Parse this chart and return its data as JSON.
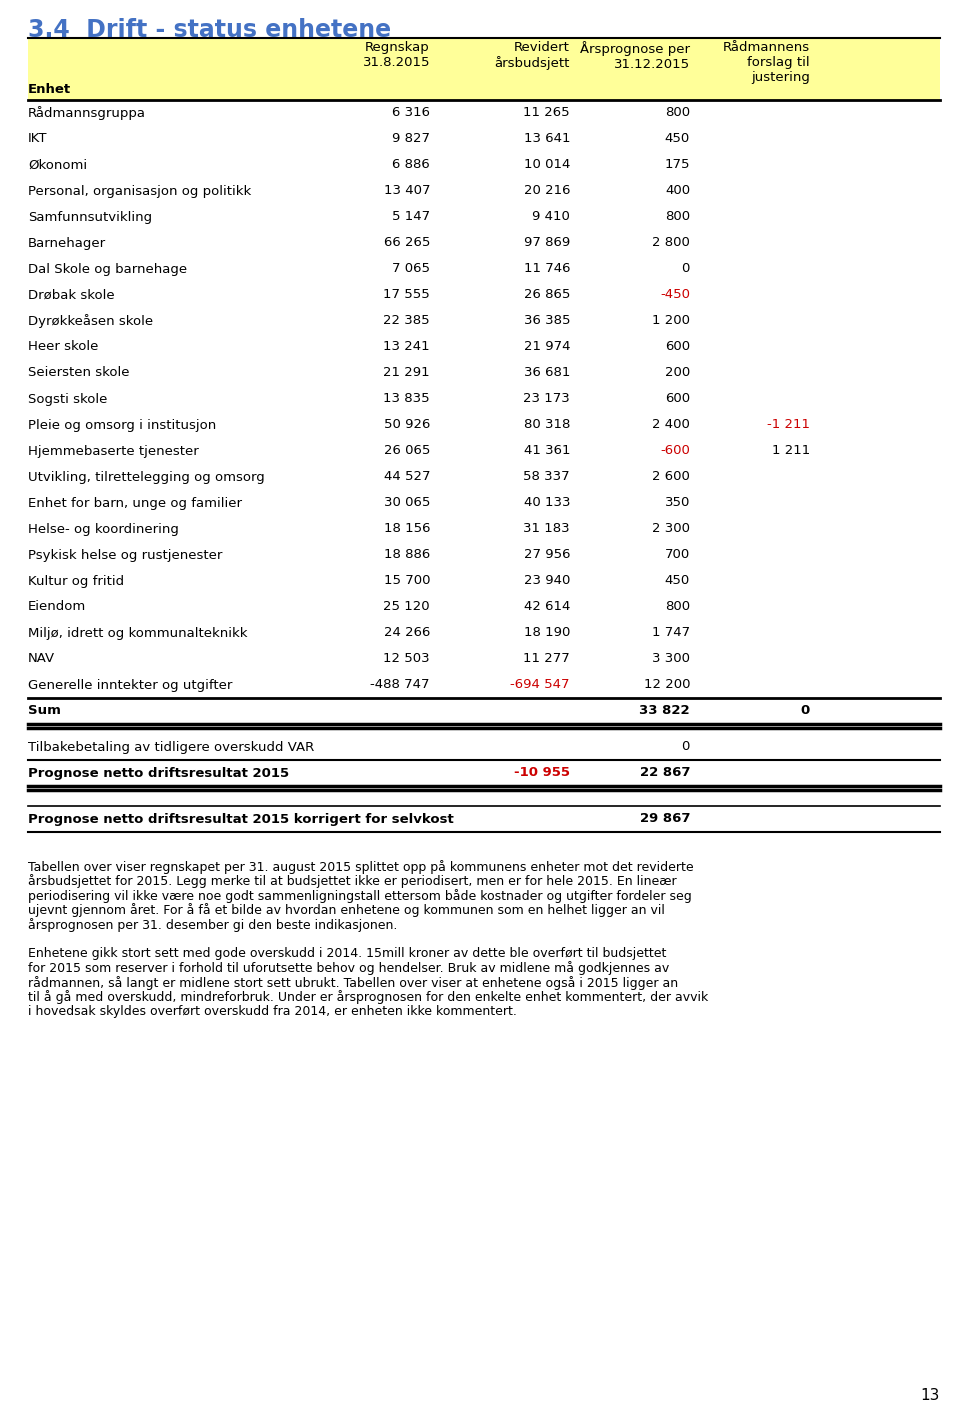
{
  "title": "3.4  Drift - status enhetene",
  "title_color": "#4472C4",
  "header_bg": "#FFFF99",
  "rows": [
    {
      "name": "Rådmannsgruppa",
      "regnskap": "6 316",
      "revidert": "11 265",
      "arsprognose": "800",
      "radmann": "",
      "arsprognose_red": false,
      "revidert_red": false,
      "radmann_red": false
    },
    {
      "name": "IKT",
      "regnskap": "9 827",
      "revidert": "13 641",
      "arsprognose": "450",
      "radmann": "",
      "arsprognose_red": false,
      "revidert_red": false,
      "radmann_red": false
    },
    {
      "name": "Økonomi",
      "regnskap": "6 886",
      "revidert": "10 014",
      "arsprognose": "175",
      "radmann": "",
      "arsprognose_red": false,
      "revidert_red": false,
      "radmann_red": false
    },
    {
      "name": "Personal, organisasjon og politikk",
      "regnskap": "13 407",
      "revidert": "20 216",
      "arsprognose": "400",
      "radmann": "",
      "arsprognose_red": false,
      "revidert_red": false,
      "radmann_red": false
    },
    {
      "name": "Samfunnsutvikling",
      "regnskap": "5 147",
      "revidert": "9 410",
      "arsprognose": "800",
      "radmann": "",
      "arsprognose_red": false,
      "revidert_red": false,
      "radmann_red": false
    },
    {
      "name": "Barnehager",
      "regnskap": "66 265",
      "revidert": "97 869",
      "arsprognose": "2 800",
      "radmann": "",
      "arsprognose_red": false,
      "revidert_red": false,
      "radmann_red": false
    },
    {
      "name": "Dal Skole og barnehage",
      "regnskap": "7 065",
      "revidert": "11 746",
      "arsprognose": "0",
      "radmann": "",
      "arsprognose_red": false,
      "revidert_red": false,
      "radmann_red": false
    },
    {
      "name": "Drøbak skole",
      "regnskap": "17 555",
      "revidert": "26 865",
      "arsprognose": "-450",
      "radmann": "",
      "arsprognose_red": true,
      "revidert_red": false,
      "radmann_red": false
    },
    {
      "name": "Dyrøkkeåsen skole",
      "regnskap": "22 385",
      "revidert": "36 385",
      "arsprognose": "1 200",
      "radmann": "",
      "arsprognose_red": false,
      "revidert_red": false,
      "radmann_red": false
    },
    {
      "name": "Heer skole",
      "regnskap": "13 241",
      "revidert": "21 974",
      "arsprognose": "600",
      "radmann": "",
      "arsprognose_red": false,
      "revidert_red": false,
      "radmann_red": false
    },
    {
      "name": "Seiersten skole",
      "regnskap": "21 291",
      "revidert": "36 681",
      "arsprognose": "200",
      "radmann": "",
      "arsprognose_red": false,
      "revidert_red": false,
      "radmann_red": false
    },
    {
      "name": "Sogsti skole",
      "regnskap": "13 835",
      "revidert": "23 173",
      "arsprognose": "600",
      "radmann": "",
      "arsprognose_red": false,
      "revidert_red": false,
      "radmann_red": false
    },
    {
      "name": "Pleie og omsorg i institusjon",
      "regnskap": "50 926",
      "revidert": "80 318",
      "arsprognose": "2 400",
      "radmann": "-1 211",
      "arsprognose_red": false,
      "revidert_red": false,
      "radmann_red": true
    },
    {
      "name": "Hjemmebaserte tjenester",
      "regnskap": "26 065",
      "revidert": "41 361",
      "arsprognose": "-600",
      "radmann": "1 211",
      "arsprognose_red": true,
      "revidert_red": false,
      "radmann_red": false
    },
    {
      "name": "Utvikling, tilrettelegging og omsorg",
      "regnskap": "44 527",
      "revidert": "58 337",
      "arsprognose": "2 600",
      "radmann": "",
      "arsprognose_red": false,
      "revidert_red": false,
      "radmann_red": false
    },
    {
      "name": "Enhet for barn, unge og familier",
      "regnskap": "30 065",
      "revidert": "40 133",
      "arsprognose": "350",
      "radmann": "",
      "arsprognose_red": false,
      "revidert_red": false,
      "radmann_red": false
    },
    {
      "name": "Helse- og koordinering",
      "regnskap": "18 156",
      "revidert": "31 183",
      "arsprognose": "2 300",
      "radmann": "",
      "arsprognose_red": false,
      "revidert_red": false,
      "radmann_red": false
    },
    {
      "name": "Psykisk helse og rustjenester",
      "regnskap": "18 886",
      "revidert": "27 956",
      "arsprognose": "700",
      "radmann": "",
      "arsprognose_red": false,
      "revidert_red": false,
      "radmann_red": false
    },
    {
      "name": "Kultur og fritid",
      "regnskap": "15 700",
      "revidert": "23 940",
      "arsprognose": "450",
      "radmann": "",
      "arsprognose_red": false,
      "revidert_red": false,
      "radmann_red": false
    },
    {
      "name": "Eiendom",
      "regnskap": "25 120",
      "revidert": "42 614",
      "arsprognose": "800",
      "radmann": "",
      "arsprognose_red": false,
      "revidert_red": false,
      "radmann_red": false
    },
    {
      "name": "Miljø, idrett og kommunalteknikk",
      "regnskap": "24 266",
      "revidert": "18 190",
      "arsprognose": "1 747",
      "radmann": "",
      "arsprognose_red": false,
      "revidert_red": false,
      "radmann_red": false
    },
    {
      "name": "NAV",
      "regnskap": "12 503",
      "revidert": "11 277",
      "arsprognose": "3 300",
      "radmann": "",
      "arsprognose_red": false,
      "revidert_red": false,
      "radmann_red": false
    },
    {
      "name": "Generelle inntekter og utgifter",
      "regnskap": "-488 747",
      "revidert": "-694 547",
      "arsprognose": "12 200",
      "radmann": "",
      "arsprognose_red": false,
      "revidert_red": true,
      "radmann_red": false
    }
  ],
  "sum_row": {
    "name": "Sum",
    "arsprognose": "33 822",
    "radmann": "0"
  },
  "tilbake_row": {
    "name": "Tilbakebetaling av tidligere overskudd VAR",
    "arsprognose": "0"
  },
  "prognose_row": {
    "name": "Prognose netto driftsresultat 2015",
    "revidert": "-10 955",
    "arsprognose": "22 867",
    "revidert_red": true
  },
  "korrigert_row": {
    "name": "Prognose netto driftsresultat 2015 korrigert for selvkost",
    "arsprognose": "29 867"
  },
  "footer_para1": "Tabellen over viser regnskapet per 31. august 2015 splittet opp på kommunens enheter mot det reviderte årsbudsjettet for 2015. Legg merke til at budsjettet ikke er periodisert, men er for hele 2015. En lineær periodisering vil ikke være noe godt sammenligningstall ettersom både kostnader og utgifter fordeler seg ujevnt gjennom året. For å få et bilde av hvordan enhetene og kommunen som en helhet ligger an vil årsprognosen per 31. desember gi den beste indikasjonen.",
  "footer_para2": "Enhetene gikk stort sett med gode overskudd i 2014. 15mill kroner av dette ble overført til budsjettet for 2015 som reserver i forhold til uforutsette behov og hendelser. Bruk av midlene må godkjennes av rådmannen, så langt er midlene stort sett ubrukt. Tabellen over viser at enhetene også i 2015 ligger an til å gå med overskudd, mindreforbruk. Under er årsprognosen for den enkelte enhet kommentert, der avvik i hovedsak skyldes overført overskudd fra 2014, er enheten ikke kommentert.",
  "page_number": "13",
  "normal_color": "#000000",
  "red_color": "#CC0000"
}
